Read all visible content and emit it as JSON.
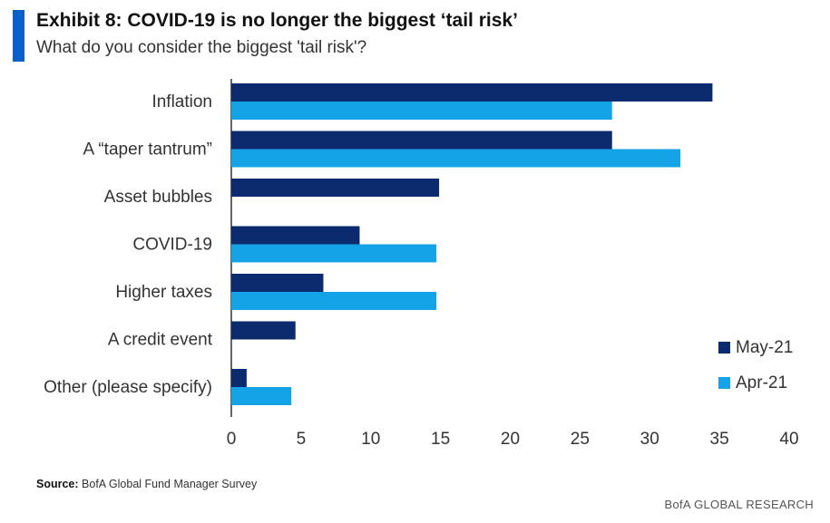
{
  "header": {
    "title": "Exhibit 8: COVID-19 is no longer the biggest ‘tail risk’",
    "subtitle": "What do you consider the biggest 'tail risk'?"
  },
  "footer": {
    "source_label": "Source:",
    "source_text": "BofA Global Fund Manager Survey",
    "brand": "BofA GLOBAL RESEARCH"
  },
  "colors": {
    "accent": "#0b5fc8",
    "may": "#0c2a6e",
    "apr": "#14a3e6"
  },
  "chart_data": {
    "type": "bar",
    "orientation": "horizontal",
    "categories": [
      "Inflation",
      "A “taper tantrum”",
      "Asset bubbles",
      "COVID-19",
      "Higher taxes",
      "A credit event",
      "Other (please specify)"
    ],
    "series": [
      {
        "name": "May-21",
        "color": "#0c2a6e",
        "values": [
          34.5,
          27.3,
          14.9,
          9.2,
          6.6,
          4.6,
          1.1
        ]
      },
      {
        "name": "Apr-21",
        "color": "#14a3e6",
        "values": [
          27.3,
          32.2,
          null,
          14.7,
          14.7,
          null,
          4.3
        ]
      }
    ],
    "xlim": [
      0,
      40
    ],
    "xticks": [
      "0",
      "5",
      "10",
      "15",
      "20",
      "25",
      "30",
      "35",
      "40"
    ],
    "grid": false,
    "legend_position": "right"
  }
}
